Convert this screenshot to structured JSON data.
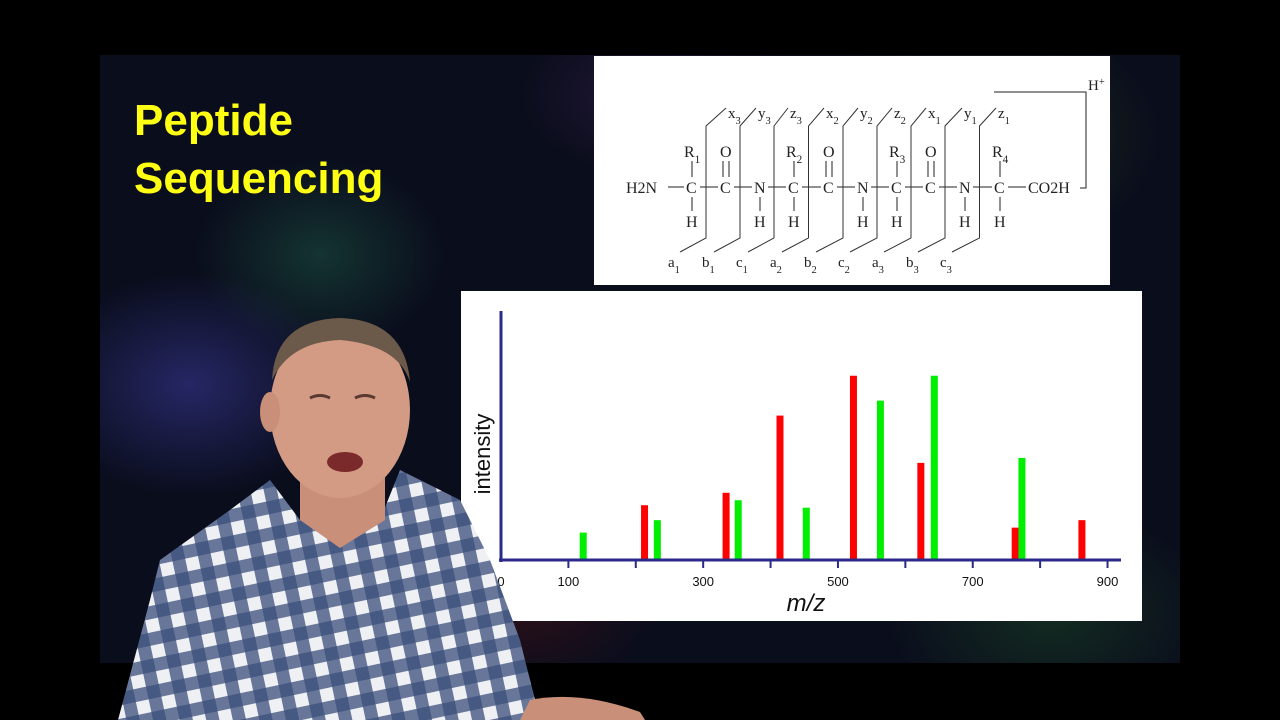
{
  "slide": {
    "title_lines": [
      "Peptide",
      "Sequencing"
    ]
  },
  "structure": {
    "top_ions": [
      "x3",
      "y3",
      "z3",
      "x2",
      "y2",
      "z2",
      "x1",
      "y1",
      "z1"
    ],
    "bottom_ions": [
      "a1",
      "b1",
      "c1",
      "a2",
      "b2",
      "c2",
      "a3",
      "b3",
      "c3"
    ],
    "r_groups": [
      "R1",
      "R2",
      "R3",
      "R4"
    ],
    "n_terminus": "H2N",
    "c_terminus": "CO2H",
    "charge": "H+",
    "atoms": {
      "carbon": "C",
      "nitrogen": "N",
      "oxygen": "O",
      "hydrogen": "H"
    }
  },
  "chart_data": {
    "type": "bar",
    "title": "",
    "xlabel": "m/z",
    "ylabel": "intensity",
    "xlim": [
      0,
      920
    ],
    "ylim": [
      0,
      100
    ],
    "x_ticks": [
      0,
      100,
      300,
      500,
      700,
      900
    ],
    "x_tick_marks": [
      100,
      200,
      300,
      400,
      500,
      600,
      700,
      800,
      900
    ],
    "series": [
      {
        "color": "#ff0000",
        "peaks": [
          {
            "mz": 213,
            "intensity": 22
          },
          {
            "mz": 334,
            "intensity": 27
          },
          {
            "mz": 414,
            "intensity": 58
          },
          {
            "mz": 523,
            "intensity": 74
          },
          {
            "mz": 623,
            "intensity": 39
          },
          {
            "mz": 763,
            "intensity": 13
          },
          {
            "mz": 862,
            "intensity": 16
          }
        ]
      },
      {
        "color": "#00ee00",
        "peaks": [
          {
            "mz": 122,
            "intensity": 11
          },
          {
            "mz": 232,
            "intensity": 16
          },
          {
            "mz": 352,
            "intensity": 24
          },
          {
            "mz": 453,
            "intensity": 21
          },
          {
            "mz": 563,
            "intensity": 64
          },
          {
            "mz": 643,
            "intensity": 74
          },
          {
            "mz": 773,
            "intensity": 41
          }
        ]
      }
    ]
  }
}
